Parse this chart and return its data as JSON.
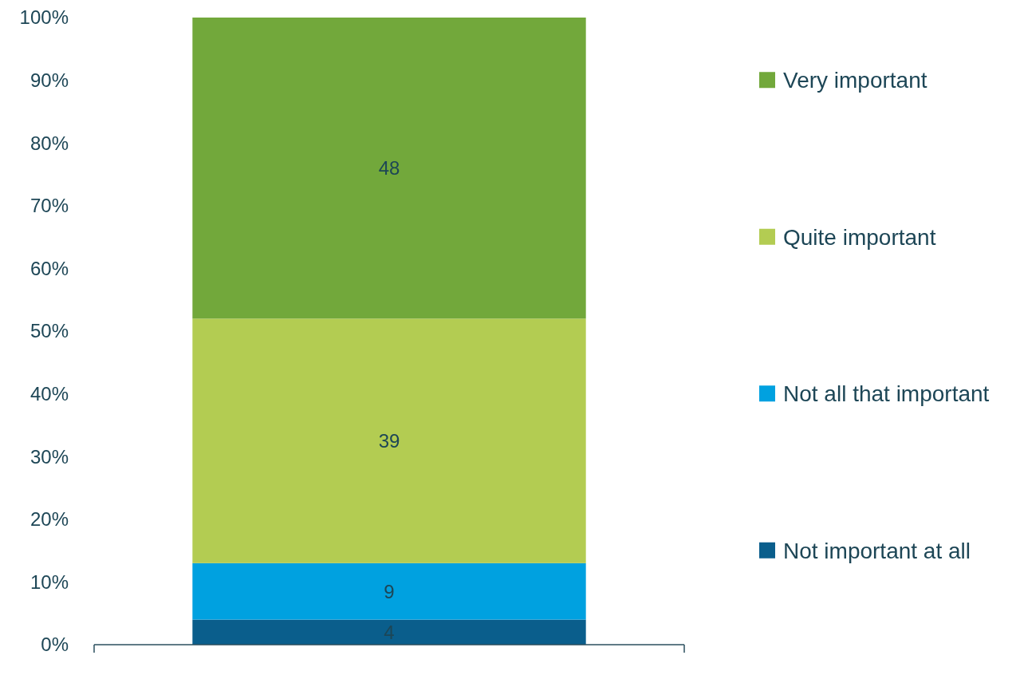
{
  "chart_data": {
    "type": "bar",
    "stacked": true,
    "categories": [
      null
    ],
    "series": [
      {
        "name": "Not important at all",
        "color": "#0a5e8c",
        "values": [
          4
        ]
      },
      {
        "name": "Not all that important",
        "color": "#00a1e0",
        "values": [
          9
        ]
      },
      {
        "name": "Quite important",
        "color": "#b3cc52",
        "values": [
          39
        ]
      },
      {
        "name": "Very important",
        "color": "#72a83b",
        "values": [
          48
        ]
      }
    ],
    "ylim": [
      0,
      100
    ],
    "yticks": [
      {
        "value": 0,
        "label": "0%"
      },
      {
        "value": 10,
        "label": "10%"
      },
      {
        "value": 20,
        "label": "20%"
      },
      {
        "value": 30,
        "label": "30%"
      },
      {
        "value": 40,
        "label": "40%"
      },
      {
        "value": 50,
        "label": "50%"
      },
      {
        "value": 60,
        "label": "60%"
      },
      {
        "value": 70,
        "label": "70%"
      },
      {
        "value": 80,
        "label": "80%"
      },
      {
        "value": 90,
        "label": "90%"
      },
      {
        "value": 100,
        "label": "100%"
      }
    ],
    "data_labels": true,
    "legend": "right",
    "tick_labels": "y"
  }
}
